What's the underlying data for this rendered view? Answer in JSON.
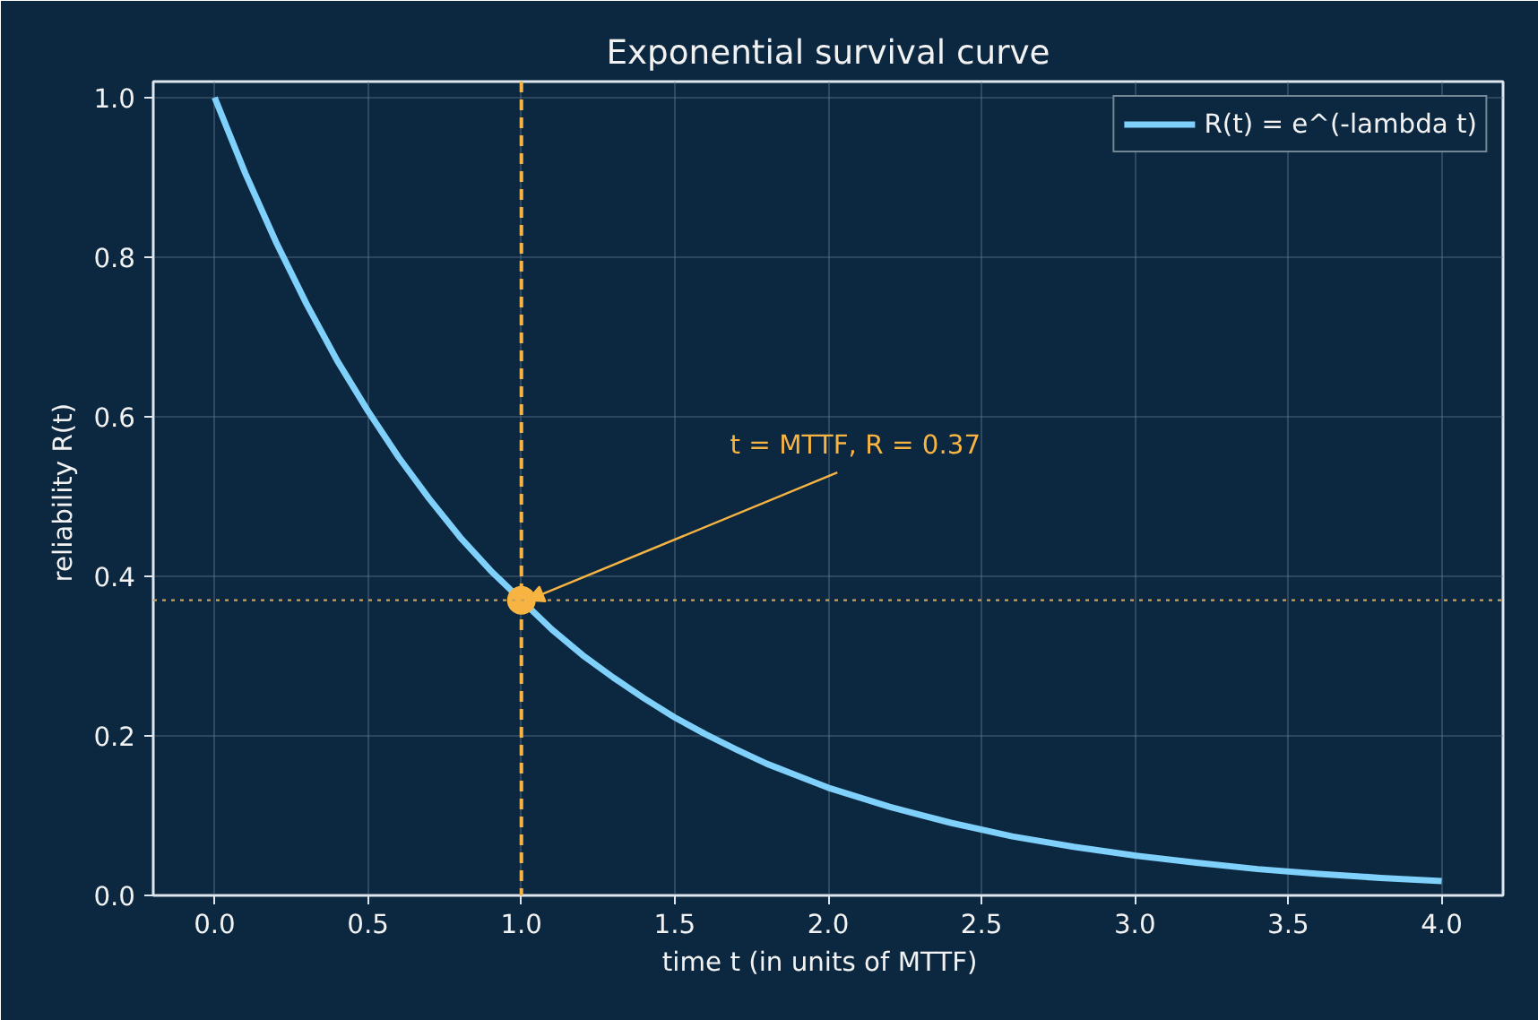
{
  "chart_data": {
    "type": "line",
    "title": "Exponential survival curve",
    "xlabel": "time  t  (in units of MTTF)",
    "ylabel": "reliability  R(t)",
    "xlim": [
      -0.2,
      4.2
    ],
    "ylim": [
      0,
      1.02
    ],
    "xticks": [
      {
        "value": 0,
        "label": "0.0"
      },
      {
        "value": 0.5,
        "label": "0.5"
      },
      {
        "value": 1,
        "label": "1.0"
      },
      {
        "value": 1.5,
        "label": "1.5"
      },
      {
        "value": 2,
        "label": "2.0"
      },
      {
        "value": 2.5,
        "label": "2.5"
      },
      {
        "value": 3,
        "label": "3.0"
      },
      {
        "value": 3.5,
        "label": "3.5"
      },
      {
        "value": 4,
        "label": "4.0"
      }
    ],
    "yticks": [
      {
        "value": 0,
        "label": "0.0"
      },
      {
        "value": 0.2,
        "label": "0.2"
      },
      {
        "value": 0.4,
        "label": "0.4"
      },
      {
        "value": 0.6,
        "label": "0.6"
      },
      {
        "value": 0.8,
        "label": "0.8"
      },
      {
        "value": 1,
        "label": "1.0"
      }
    ],
    "grid": true,
    "legend": "top right",
    "line_style": "solid",
    "series": [
      {
        "name": "R(t) = e^(-lambda t)",
        "color": "#7fd0fa",
        "x": [
          0,
          0.1,
          0.2,
          0.3,
          0.4,
          0.5,
          0.6,
          0.7,
          0.8,
          0.9,
          1.1,
          1.2,
          1.3,
          1.4,
          1.5,
          1.6,
          1.7,
          1.8,
          1.9,
          2.0,
          2.2,
          2.4,
          2.6,
          2.8,
          3.0,
          3.2,
          3.4,
          3.6,
          3.8,
          4.0
        ],
        "values": [
          1.0,
          0.905,
          0.819,
          0.741,
          0.67,
          0.607,
          0.549,
          0.497,
          0.449,
          0.407,
          0.333,
          0.301,
          0.273,
          0.247,
          0.223,
          0.202,
          0.183,
          0.165,
          0.15,
          0.135,
          0.111,
          0.091,
          0.074,
          0.061,
          0.05,
          0.041,
          0.033,
          0.027,
          0.022,
          0.018
        ]
      },
      {
        "type": "scatter",
        "marker": "circle",
        "color": "#f8b442",
        "x": [
          1.0
        ],
        "values": [
          0.37
        ]
      }
    ],
    "ref_lines": [
      {
        "axis": "x",
        "value": 1.0,
        "color": "#f8b442",
        "line_style": "dashed"
      },
      {
        "axis": "y",
        "value": 0.37,
        "color": "#c9a060",
        "line_style": "dotted"
      }
    ],
    "annotations": [
      {
        "text": "t = MTTF, R = 0.37",
        "x": 1.0,
        "y": 0.37
      }
    ]
  }
}
